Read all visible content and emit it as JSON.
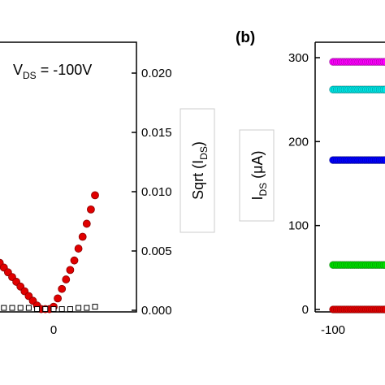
{
  "chart_data": [
    {
      "panel": "a",
      "type": "scatter",
      "annotation_main": "V",
      "annotation_sub": "DS",
      "annotation_rest": " = -100V",
      "x_ticks": [
        "0"
      ],
      "y2_ticks": [
        "0.000",
        "0.005",
        "0.010",
        "0.015",
        "0.020"
      ],
      "y2_label_main": "Sqrt (I",
      "y2_label_sub": "DS",
      "y2_label_end": ")",
      "x_range": [
        -60,
        30
      ],
      "y2_range": [
        0,
        0.022
      ],
      "series": [
        {
          "color": "#e00000",
          "marker": "circle",
          "x": [
            -60,
            -58,
            -56,
            -54,
            -52,
            -50,
            -48,
            -46,
            -44,
            -42,
            -40,
            -38,
            -36,
            -34,
            -32,
            -30,
            -28,
            -26,
            -24,
            -22,
            -20,
            -18,
            -16,
            -14,
            -12,
            -10,
            -8,
            -6,
            -4,
            -2,
            0,
            2,
            4,
            6,
            8,
            10,
            12,
            14,
            16,
            18,
            20
          ],
          "y": [
            0.0108,
            0.0104,
            0.01,
            0.0096,
            0.0092,
            0.0088,
            0.0084,
            0.008,
            0.0076,
            0.0072,
            0.0068,
            0.0064,
            0.006,
            0.0056,
            0.0052,
            0.0048,
            0.0044,
            0.004,
            0.0036,
            0.0032,
            0.0028,
            0.0024,
            0.002,
            0.0016,
            0.0012,
            0.0008,
            0.0004,
            0.0001,
            0.0001,
            0.0001,
            0.0003,
            0.001,
            0.0018,
            0.0026,
            0.0034,
            0.0042,
            0.0052,
            0.0062,
            0.0073,
            0.0085,
            0.0097
          ]
        },
        {
          "color": "#000000",
          "marker": "open-square",
          "x": [
            -60,
            -56,
            -52,
            -48,
            -44,
            -40,
            -36,
            -32,
            -28,
            -24,
            -20,
            -16,
            -12,
            -8,
            -4,
            0,
            4,
            8,
            12,
            16,
            20
          ],
          "y": [
            0.0005,
            0.0004,
            0.0004,
            0.0004,
            0.0003,
            0.0003,
            0.0003,
            0.0003,
            0.0003,
            0.0002,
            0.0002,
            0.0002,
            0.0002,
            0.0001,
            0.0001,
            0.0001,
            0.0001,
            0.0001,
            0.0002,
            0.0002,
            0.0003
          ]
        }
      ]
    },
    {
      "panel": "b",
      "panel_label": "(b)",
      "type": "scatter",
      "x_ticks": [
        "-100"
      ],
      "y_ticks": [
        "0",
        "100",
        "200",
        "300"
      ],
      "y_label_main": "I",
      "y_label_sub": "DS",
      "y_label_end": " (μA)",
      "x_range": [
        -100,
        -65
      ],
      "y_range": [
        0,
        310
      ],
      "series": [
        {
          "color": "#ff00ff",
          "level": 295
        },
        {
          "color": "#00e5e5",
          "level": 262
        },
        {
          "color": "#0000ff",
          "level": 178
        },
        {
          "color": "#00dd00",
          "level": 53
        },
        {
          "color": "#e00000",
          "level": 0
        }
      ]
    }
  ]
}
